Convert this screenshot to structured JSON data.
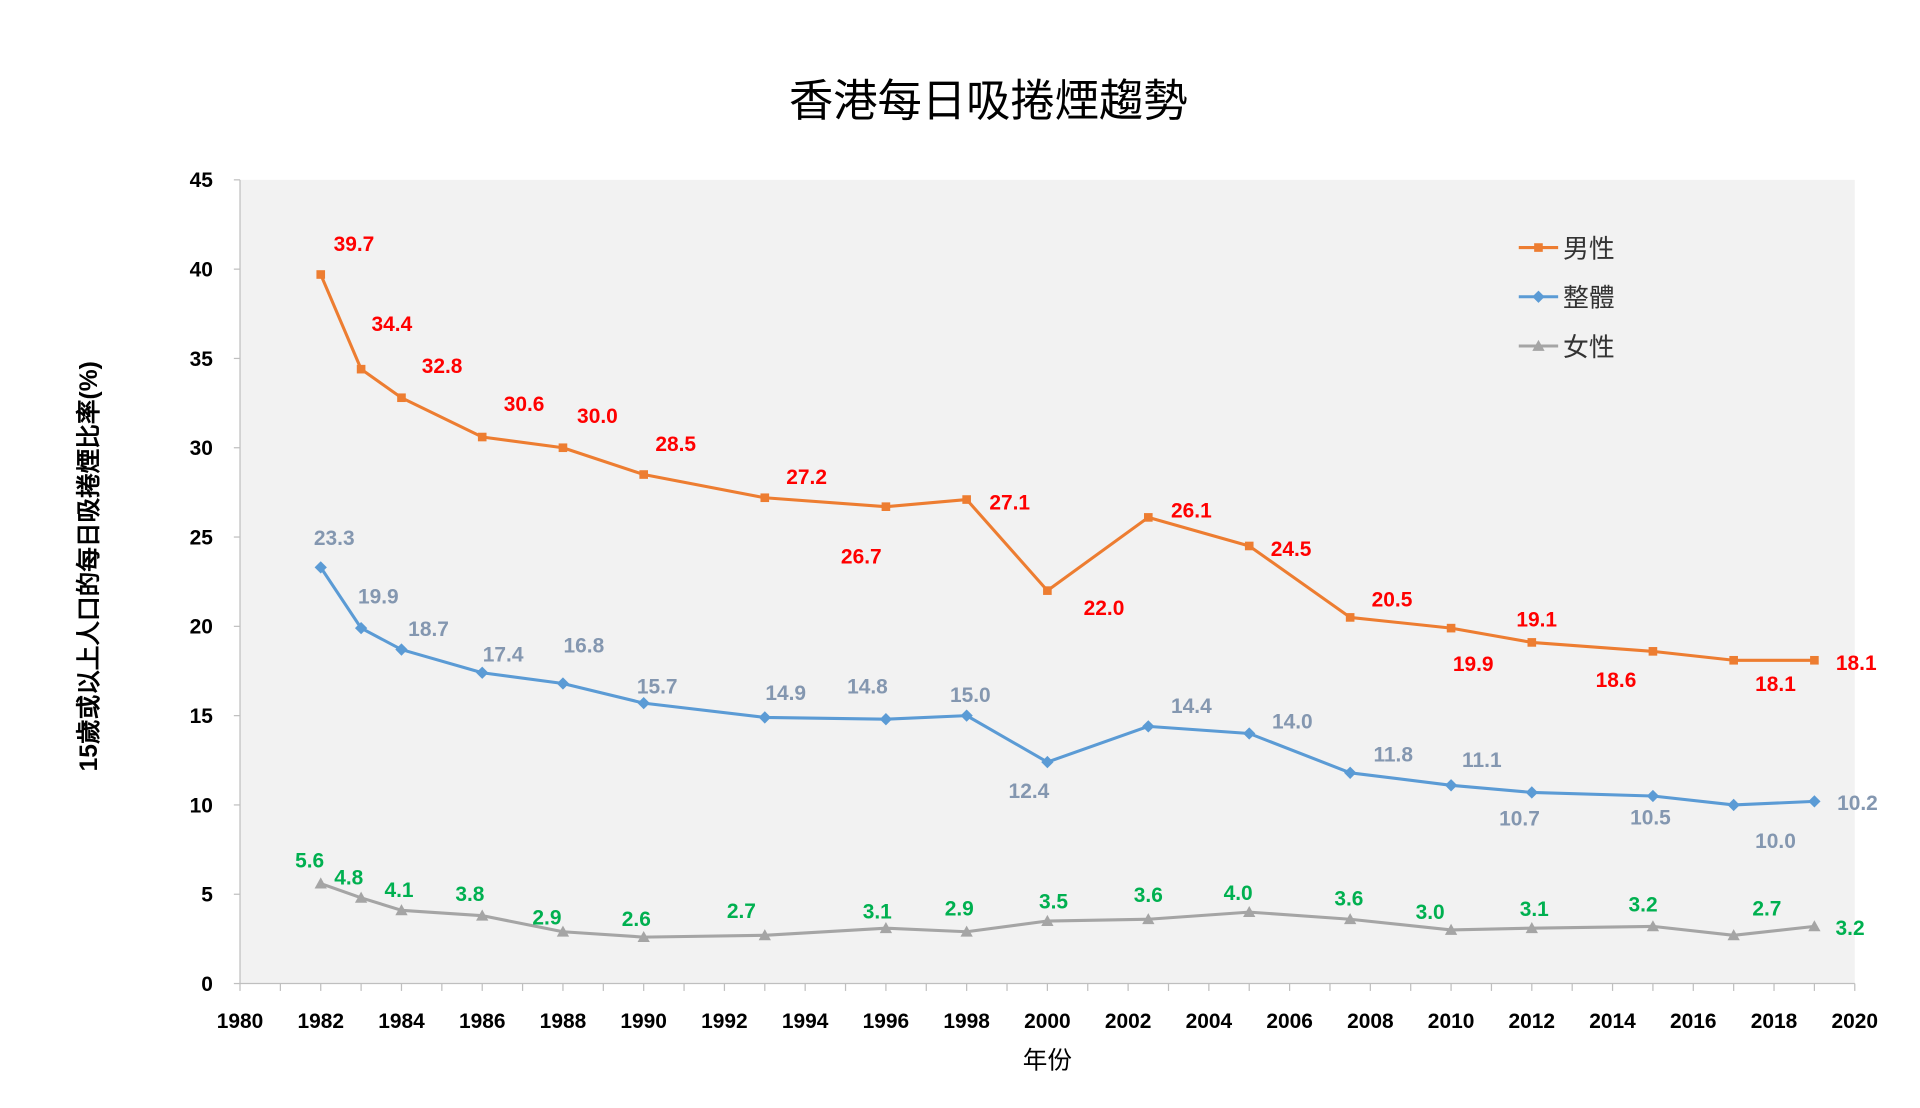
{
  "chart_data": {
    "type": "line",
    "title": "香港每日吸捲煙趨勢",
    "xlabel": "年份",
    "ylabel": "15歲或以上人口的每日吸捲煙比率(%)",
    "xlim": [
      1980,
      2020
    ],
    "ylim": [
      0,
      45
    ],
    "x_ticks": [
      1980,
      1982,
      1984,
      1986,
      1988,
      1990,
      1992,
      1994,
      1996,
      1998,
      2000,
      2002,
      2004,
      2006,
      2008,
      2010,
      2012,
      2014,
      2016,
      2018,
      2020
    ],
    "y_ticks": [
      0,
      5,
      10,
      15,
      20,
      25,
      30,
      35,
      40,
      45
    ],
    "grid": false,
    "legend_position": "top-right",
    "x": [
      1982,
      1983,
      1984,
      1986,
      1988,
      1990,
      1993,
      1996,
      1998,
      2000,
      2002.5,
      2005,
      2007.5,
      2010,
      2012,
      2015,
      2017,
      2019
    ],
    "series": [
      {
        "name": "男性",
        "color": "#ed7d31",
        "label_color": "#ff0000",
        "marker": "square",
        "values": [
          39.7,
          34.4,
          32.8,
          30.6,
          30.0,
          28.5,
          27.2,
          26.7,
          27.1,
          22.0,
          26.1,
          24.5,
          20.5,
          19.9,
          19.1,
          18.6,
          18.1,
          18.1
        ]
      },
      {
        "name": "整體",
        "color": "#5b9bd5",
        "label_color": "#8497b0",
        "marker": "diamond",
        "values": [
          23.3,
          19.9,
          18.7,
          17.4,
          16.8,
          15.7,
          14.9,
          14.8,
          15.0,
          12.4,
          14.4,
          14.0,
          11.8,
          11.1,
          10.7,
          10.5,
          10.0,
          10.2
        ]
      },
      {
        "name": "女性",
        "color": "#a5a5a5",
        "label_color": "#00b050",
        "marker": "triangle",
        "values": [
          5.6,
          4.8,
          4.1,
          3.8,
          2.9,
          2.6,
          2.7,
          3.1,
          2.9,
          3.5,
          3.6,
          4.0,
          3.6,
          3.0,
          3.1,
          3.2,
          2.7,
          3.2
        ]
      }
    ]
  }
}
